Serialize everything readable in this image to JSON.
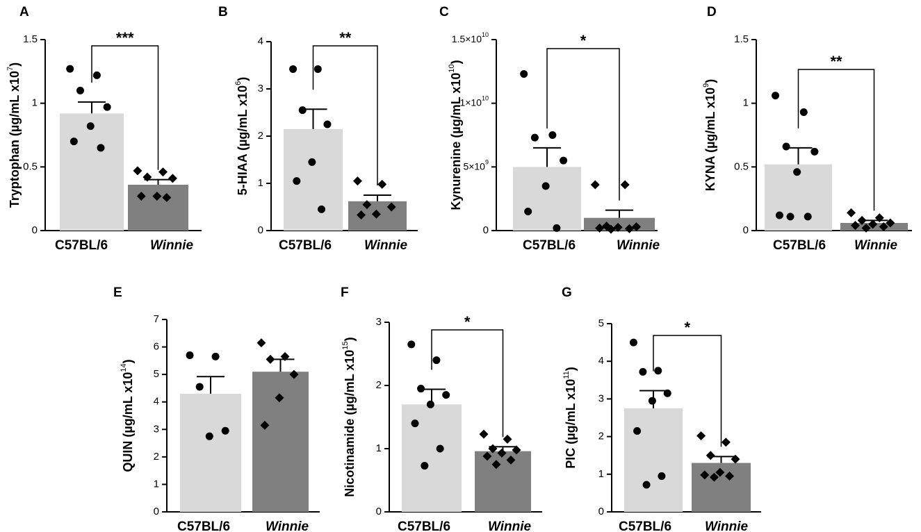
{
  "chart_data": [
    {
      "type": "bar",
      "panel_label": "A",
      "ylabel": "Tryptophan (µg/mL x10",
      "ylabel_exp": "7",
      "ylabel_close": ")",
      "ylim": [
        0,
        1.5
      ],
      "yticks": [
        0,
        0.5,
        1,
        1.5
      ],
      "ytick_labels": [
        "0",
        "0.5",
        "1",
        "1.5"
      ],
      "categories": [
        "C57BL/6",
        "Winnie"
      ],
      "values": [
        0.92,
        0.36
      ],
      "sem": [
        0.09,
        0.04
      ],
      "points": [
        [
          1.27,
          1.22,
          1.1,
          0.97,
          0.82,
          0.7,
          0.65
        ],
        [
          0.47,
          0.46,
          0.42,
          0.41,
          0.27,
          0.27,
          0.26
        ]
      ],
      "significance": "***"
    },
    {
      "type": "bar",
      "panel_label": "B",
      "ylabel": "5-HIAA (µg/mL x10",
      "ylabel_exp": "6",
      "ylabel_close": ")",
      "ylim": [
        0,
        4
      ],
      "yticks": [
        0,
        1,
        2,
        3,
        4
      ],
      "ytick_labels": [
        "0",
        "1",
        "2",
        "3",
        "4"
      ],
      "categories": [
        "C57BL/6",
        "Winnie"
      ],
      "values": [
        2.15,
        0.62
      ],
      "sem": [
        0.42,
        0.13
      ],
      "points": [
        [
          3.42,
          3.42,
          2.55,
          2.25,
          1.45,
          1.05,
          0.45
        ],
        [
          1.05,
          0.98,
          0.55,
          0.5,
          0.35,
          0.33
        ]
      ],
      "significance": "**"
    },
    {
      "type": "bar",
      "panel_label": "C",
      "ylabel": "Kynurenine (µg/mL x10",
      "ylabel_exp": "10",
      "ylabel_close": ")",
      "ylim": [
        0,
        15000000000
      ],
      "yticks": [
        0,
        5000000000,
        10000000000,
        15000000000
      ],
      "ytick_labels": [
        "0",
        "5×10",
        "1×10",
        "1.5×10"
      ],
      "ytick_exps": [
        "",
        "9",
        "10",
        "10"
      ],
      "categories": [
        "C57BL/6",
        "Winnie"
      ],
      "values": [
        5000000000,
        1000000000
      ],
      "sem": [
        1500000000,
        600000000
      ],
      "points": [
        [
          12300000000,
          7500000000,
          7300000000,
          5500000000,
          3500000000,
          1500000000,
          200000000
        ],
        [
          3600000000,
          3600000000,
          350000000,
          300000000,
          250000000,
          200000000,
          150000000,
          100000000
        ]
      ],
      "significance": "*"
    },
    {
      "type": "bar",
      "panel_label": "D",
      "ylabel": "KYNA (µg/mL x10",
      "ylabel_exp": "9",
      "ylabel_close": ")",
      "ylim": [
        0,
        1.5
      ],
      "yticks": [
        0,
        0.5,
        1,
        1.5
      ],
      "ytick_labels": [
        "0",
        "0.5",
        "1",
        "1.5"
      ],
      "categories": [
        "C57BL/6",
        "Winnie"
      ],
      "values": [
        0.52,
        0.06
      ],
      "sem": [
        0.13,
        0.02
      ],
      "points": [
        [
          1.06,
          0.93,
          0.66,
          0.62,
          0.46,
          0.12,
          0.11,
          0.11
        ],
        [
          0.14,
          0.1,
          0.08,
          0.06,
          0.05,
          0.04,
          0.03,
          0.02
        ]
      ],
      "significance": "**"
    },
    {
      "type": "bar",
      "panel_label": "E",
      "ylabel": "QUIN (µg/mL x10",
      "ylabel_exp": "14",
      "ylabel_close": ")",
      "ylim": [
        0,
        7
      ],
      "yticks": [
        0,
        1,
        2,
        3,
        4,
        5,
        6,
        7
      ],
      "ytick_labels": [
        "0",
        "1",
        "2",
        "3",
        "4",
        "5",
        "6",
        "7"
      ],
      "categories": [
        "C57BL/6",
        "Winnie"
      ],
      "values": [
        4.3,
        5.1
      ],
      "sem": [
        0.62,
        0.45
      ],
      "points": [
        [
          5.7,
          5.65,
          4.55,
          2.95,
          2.75
        ],
        [
          6.15,
          5.65,
          5.55,
          5.0,
          4.15,
          3.15
        ]
      ],
      "significance": ""
    },
    {
      "type": "bar",
      "panel_label": "F",
      "ylabel": "Nicotinamide (µg/mL x10",
      "ylabel_exp": "15",
      "ylabel_close": ")",
      "ylim": [
        0,
        3
      ],
      "yticks": [
        0,
        1,
        2,
        3
      ],
      "ytick_labels": [
        "0",
        "1",
        "2",
        "3"
      ],
      "categories": [
        "C57BL/6",
        "Winnie"
      ],
      "values": [
        1.7,
        0.96
      ],
      "sem": [
        0.24,
        0.07
      ],
      "points": [
        [
          2.65,
          2.4,
          1.95,
          1.85,
          1.7,
          1.4,
          1.0,
          0.73
        ],
        [
          1.23,
          1.15,
          1.0,
          0.98,
          0.93,
          0.88,
          0.82,
          0.75
        ]
      ],
      "significance": "*"
    },
    {
      "type": "bar",
      "panel_label": "G",
      "ylabel": "PIC (µg/mL x10",
      "ylabel_exp": "11",
      "ylabel_close": ")",
      "ylim": [
        0,
        5
      ],
      "yticks": [
        0,
        1,
        2,
        3,
        4,
        5
      ],
      "ytick_labels": [
        "0",
        "1",
        "2",
        "3",
        "4",
        "5"
      ],
      "categories": [
        "C57BL/6",
        "Winnie"
      ],
      "values": [
        2.75,
        1.3
      ],
      "sem": [
        0.47,
        0.17
      ],
      "points": [
        [
          4.5,
          3.75,
          3.72,
          3.15,
          2.95,
          2.15,
          0.95,
          0.72
        ],
        [
          2.02,
          1.85,
          1.5,
          1.4,
          1.05,
          0.98,
          0.95,
          0.92
        ]
      ],
      "significance": "*"
    }
  ],
  "colors": {
    "bar_control": "#d9d9d9",
    "bar_winnie": "#808080",
    "ink": "#000000"
  }
}
